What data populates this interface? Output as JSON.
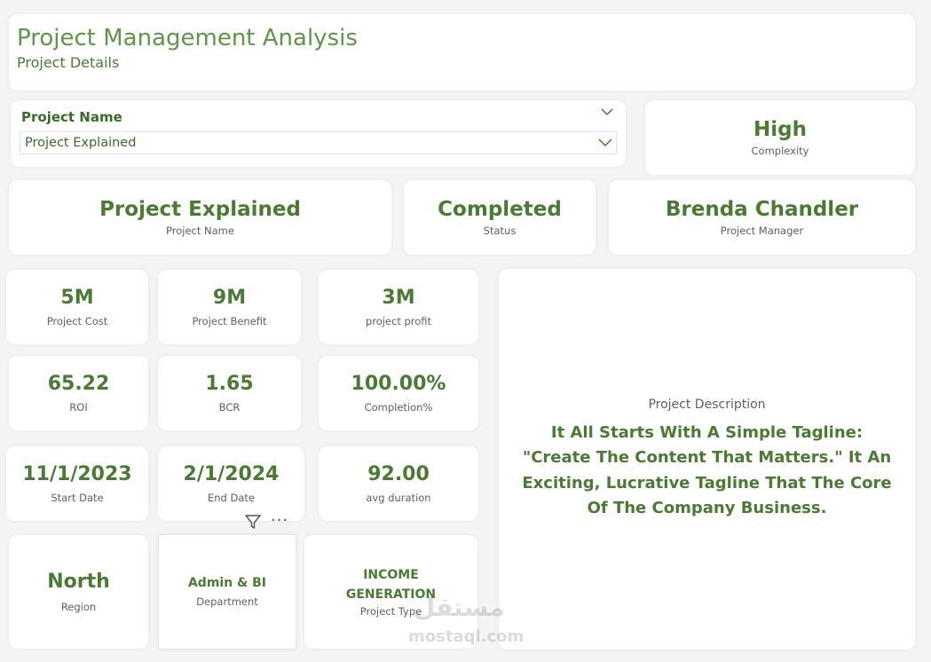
{
  "header": {
    "title": "Project Management Analysis",
    "subtitle": "Project Details"
  },
  "slicer": {
    "title": "Project Name",
    "selected": "Project Explained"
  },
  "complexity": {
    "value": "High",
    "label": "Complexity"
  },
  "project_name_card": {
    "value": "Project Explained",
    "label": "Project Name"
  },
  "status_card": {
    "value": "Completed",
    "label": "Status"
  },
  "manager_card": {
    "value": "Brenda Chandler",
    "label": "Project Manager"
  },
  "kpis": {
    "cost": {
      "value": "5M",
      "label": "Project Cost"
    },
    "benefit": {
      "value": "9M",
      "label": "Project Benefit"
    },
    "profit": {
      "value": "3M",
      "label": "project profit"
    },
    "roi": {
      "value": "65.22",
      "label": "ROI"
    },
    "bcr": {
      "value": "1.65",
      "label": "BCR"
    },
    "completion": {
      "value": "100.00%",
      "label": "Completion%"
    },
    "start_date": {
      "value": "11/1/2023",
      "label": "Start Date"
    },
    "end_date": {
      "value": "2/1/2024",
      "label": "End Date"
    },
    "avg_duration": {
      "value": "92.00",
      "label": "avg duration"
    },
    "region": {
      "value": "North",
      "label": "Region"
    },
    "department": {
      "value": "Admin & BI",
      "label": "Department"
    },
    "project_type": {
      "value": "INCOME GENERATION",
      "label": "Project Type"
    }
  },
  "description": {
    "label": "Project Description",
    "text": "It All Starts With A Simple Tagline: \"Create The Content That Matters.\" It An Exciting, Lucrative Tagline That The Core Of The Company Business."
  },
  "visual_header": {
    "more_glyph": "···"
  },
  "watermark": {
    "logo": "مستقل",
    "text": "mostaql.com"
  },
  "colors": {
    "accent": "#4a7a34",
    "title_green": "#5e9648",
    "label_gray": "#5f5f5f",
    "background": "#f4f4f4"
  }
}
